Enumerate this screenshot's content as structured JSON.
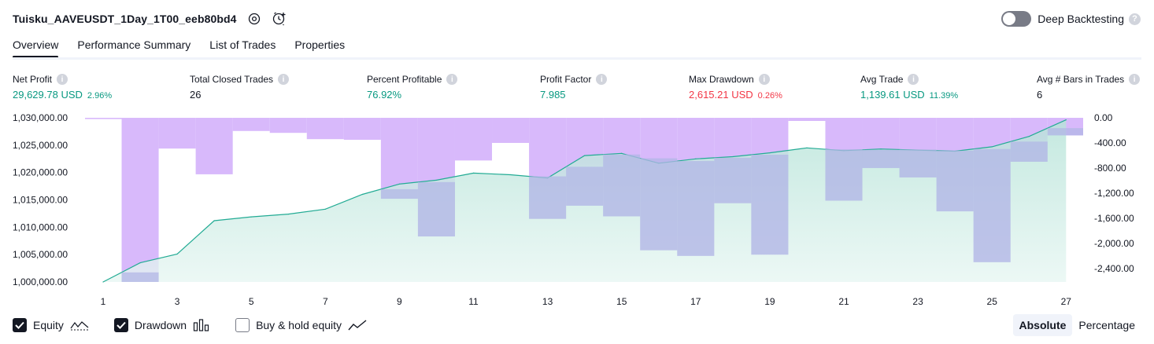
{
  "header": {
    "title": "Tuisku_AAVEUSDT_1Day_1T00_eeb80bd4",
    "settings_icon": "settings-cog-icon",
    "alert_icon": "add-alert-clock-icon",
    "deep_backtesting_label": "Deep Backtesting",
    "deep_backtesting_enabled": false,
    "help_glyph": "?"
  },
  "tabs": [
    {
      "label": "Overview",
      "active": true
    },
    {
      "label": "Performance Summary",
      "active": false
    },
    {
      "label": "List of Trades",
      "active": false
    },
    {
      "label": "Properties",
      "active": false
    }
  ],
  "metrics": {
    "info_glyph": "i",
    "net_profit": {
      "label": "Net Profit",
      "value": "29,629.78 USD",
      "pct": "2.96%"
    },
    "total_closed_trades": {
      "label": "Total Closed Trades",
      "value": "26"
    },
    "percent_profitable": {
      "label": "Percent Profitable",
      "value": "76.92%"
    },
    "profit_factor": {
      "label": "Profit Factor",
      "value": "7.985"
    },
    "max_drawdown": {
      "label": "Max Drawdown",
      "value": "2,615.21 USD",
      "pct": "0.26%"
    },
    "avg_trade": {
      "label": "Avg Trade",
      "value": "1,139.61 USD",
      "pct": "11.39%"
    },
    "avg_bars": {
      "label": "Avg # Bars in Trades",
      "value": "6"
    }
  },
  "colors": {
    "positive": "#089981",
    "negative": "#f23645",
    "equity_line": "#22ab94",
    "equity_fill": "#d4efe9",
    "drawdown_bar": "#d8b9fb",
    "overlap_bar": "#b1b7e6"
  },
  "chart_data": {
    "type": "bar+area",
    "x": [
      1,
      2,
      3,
      4,
      5,
      6,
      7,
      8,
      9,
      10,
      11,
      12,
      13,
      14,
      15,
      16,
      17,
      18,
      19,
      20,
      21,
      22,
      23,
      24,
      25,
      26,
      27
    ],
    "x_tick_labels": [
      "1",
      "3",
      "5",
      "7",
      "9",
      "11",
      "13",
      "15",
      "17",
      "19",
      "21",
      "23",
      "25",
      "27"
    ],
    "series": [
      {
        "name": "Equity",
        "axis": "left",
        "values": [
          1000000,
          1003500,
          1005100,
          1011200,
          1011900,
          1012400,
          1013300,
          1016000,
          1017900,
          1018600,
          1019900,
          1019600,
          1019000,
          1023100,
          1023500,
          1021700,
          1022500,
          1022900,
          1023600,
          1024500,
          1024000,
          1024300,
          1024100,
          1023900,
          1024700,
          1026600,
          1029630
        ]
      },
      {
        "name": "Drawdown",
        "axis": "right",
        "values": [
          -20,
          -2615,
          -490,
          -900,
          -210,
          -240,
          -340,
          -350,
          -1290,
          -1890,
          -680,
          -400,
          -1610,
          -1400,
          -1570,
          -2110,
          -2200,
          -1360,
          -2180,
          -50,
          -1320,
          -800,
          -950,
          -1490,
          -2300,
          -700,
          -280
        ]
      }
    ],
    "y_left_ticks": [
      "1,030,000.00",
      "1,025,000.00",
      "1,020,000.00",
      "1,015,000.00",
      "1,010,000.00",
      "1,005,000.00",
      "1,000,000.00"
    ],
    "y_left_range": [
      1000000,
      1030000
    ],
    "y_right_ticks": [
      "0.00",
      "-400.00",
      "-800.00",
      "-1,200.00",
      "-1,600.00",
      "-2,000.00",
      "-2,400.00"
    ],
    "y_right_range": [
      -2615.21,
      0
    ],
    "grid": false
  },
  "legend": {
    "items": [
      {
        "label": "Equity",
        "checked": true,
        "icon": "equity-line-icon"
      },
      {
        "label": "Drawdown",
        "checked": true,
        "icon": "drawdown-bars-icon"
      },
      {
        "label": "Buy & hold equity",
        "checked": false,
        "icon": "buy-hold-line-icon"
      }
    ]
  },
  "mode": {
    "absolute_label": "Absolute",
    "percentage_label": "Percentage",
    "selected": "Absolute"
  }
}
